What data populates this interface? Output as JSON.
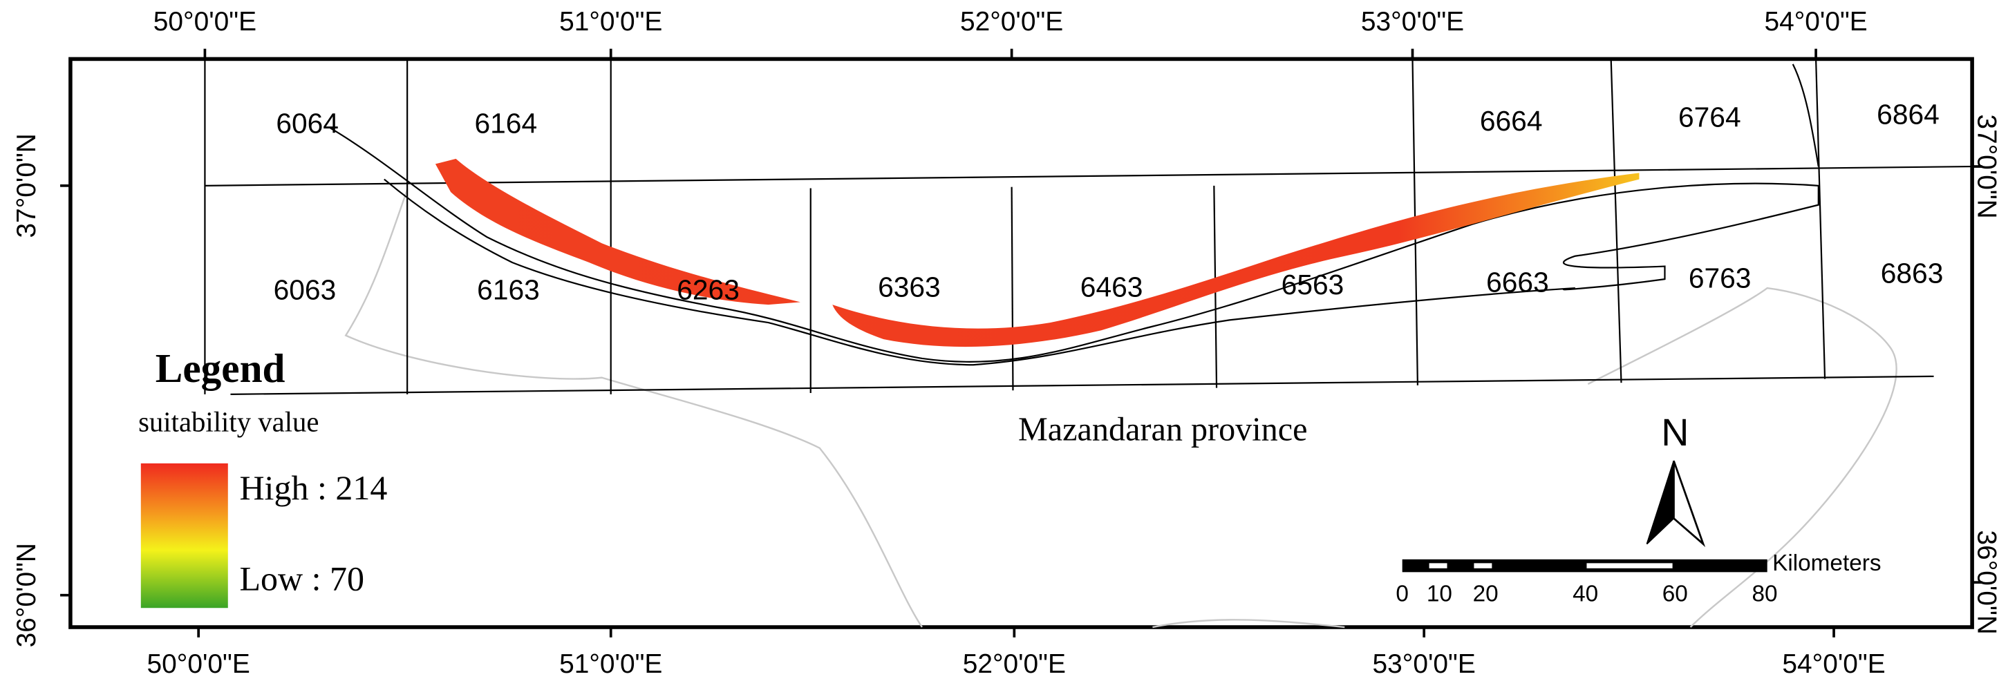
{
  "top_longitude_labels": [
    "50°0'0\"E",
    "51°0'0\"E",
    "52°0'0\"E",
    "53°0'0\"E",
    "54°0'0\"E"
  ],
  "bottom_longitude_labels": [
    "50°0'0\"E",
    "51°0'0\"E",
    "52°0'0\"E",
    "53°0'0\"E",
    "54°0'0\"E"
  ],
  "left_latitude_labels": [
    "37°0'0\"N",
    "36°0'0\"N"
  ],
  "right_latitude_labels": [
    "37°0'0\"N",
    "36°0'0\"N"
  ],
  "sheet_labels": [
    "6064",
    "6164",
    "6664",
    "6764",
    "6864",
    "6063",
    "6163",
    "6263",
    "6363",
    "6463",
    "6563",
    "6663",
    "6763",
    "6863"
  ],
  "province_label": "Mazandaran province",
  "legend": {
    "title": "Legend",
    "subtitle": "suitability value",
    "high": "High : 214",
    "low": "Low : 70"
  },
  "north_label": "N",
  "scale_bar": {
    "labels": [
      "0",
      "10",
      "20",
      "40",
      "60",
      "80"
    ],
    "unit": "Kilometers"
  }
}
